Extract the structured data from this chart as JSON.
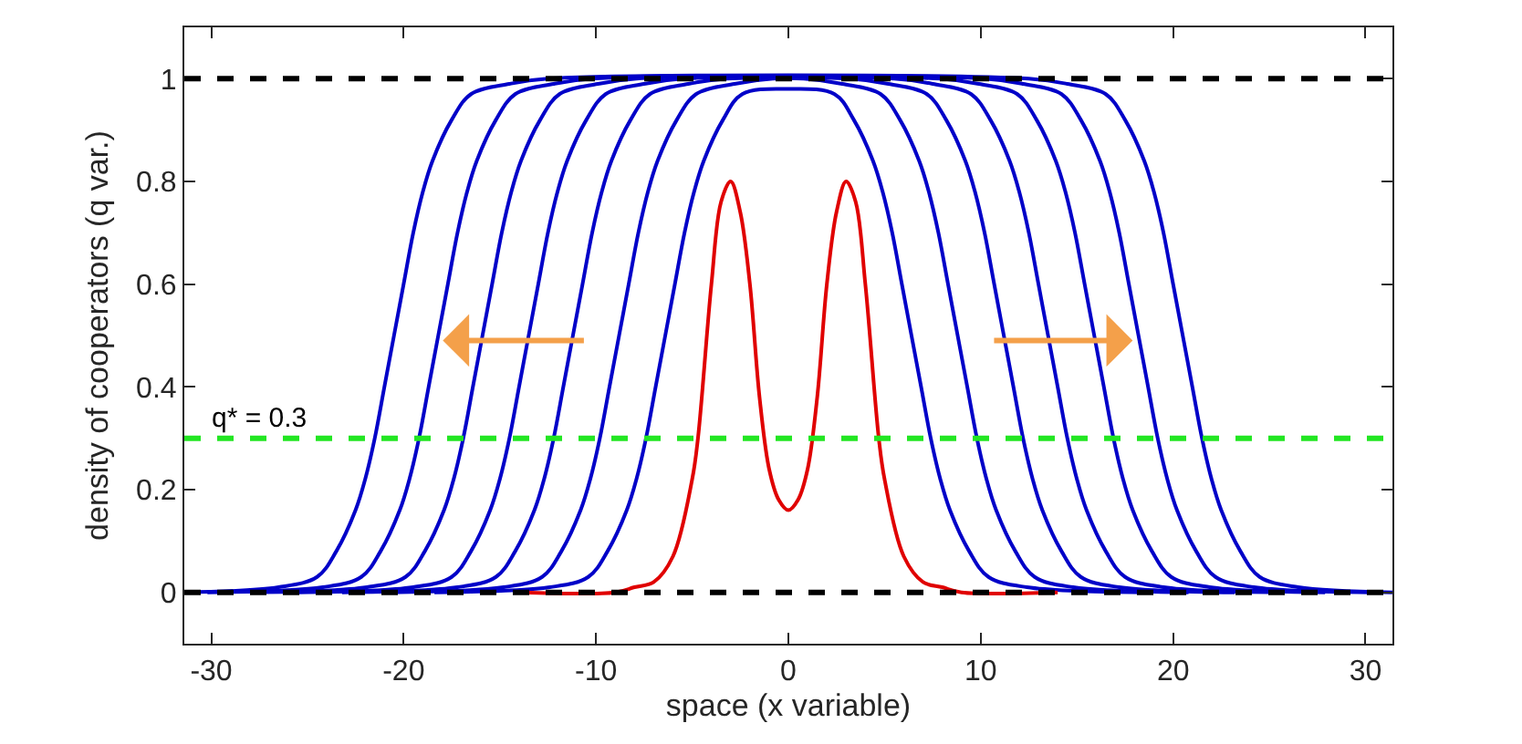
{
  "chart_data": {
    "type": "line",
    "xlabel": "space (x variable)",
    "ylabel": "density of cooperators (q var.)",
    "xlim": [
      -31.4,
      31.4
    ],
    "xticks": [
      -30,
      -20,
      -10,
      0,
      10,
      20,
      30
    ],
    "ylim": [
      -0.1,
      1.1
    ],
    "yticks": [
      0,
      0.2,
      0.4,
      0.6,
      0.8,
      1
    ],
    "grid": false,
    "series": [
      {
        "color": "#0000c8",
        "x": [
          -31.4,
          -26.5,
          -24.5,
          -23.5,
          -22.5,
          -22,
          -21.5,
          -21,
          -20.5,
          -20,
          -19.5,
          -19,
          -18.5,
          -17.5,
          -16.5,
          -14.5,
          -12.5,
          12.5,
          14.5,
          16.5,
          17.5,
          18.5,
          19,
          19.5,
          20,
          20.5,
          21,
          21.5,
          22,
          22.5,
          23.5,
          24.5,
          26.5,
          31.4
        ],
        "values": [
          0,
          0.01,
          0.03,
          0.08,
          0.16,
          0.22,
          0.3,
          0.4,
          0.5,
          0.6,
          0.7,
          0.78,
          0.84,
          0.92,
          0.97,
          0.99,
          1,
          1,
          0.99,
          0.97,
          0.92,
          0.84,
          0.78,
          0.7,
          0.6,
          0.5,
          0.4,
          0.3,
          0.22,
          0.16,
          0.08,
          0.03,
          0.01,
          0
        ]
      },
      {
        "color": "#0000c8",
        "x": [
          -30.2,
          -24.2,
          -22.2,
          -21.2,
          -20.2,
          -19.7,
          -19.2,
          -18.7,
          -18.2,
          -17.7,
          -17.2,
          -16.7,
          -16.2,
          -15.2,
          -14.2,
          -12.2,
          -10.2,
          10.2,
          12.2,
          14.2,
          15.2,
          16.2,
          16.7,
          17.2,
          17.7,
          18.2,
          18.7,
          19.2,
          19.7,
          20.2,
          21.2,
          22.2,
          24.2,
          30.2
        ],
        "values": [
          0,
          0.01,
          0.03,
          0.08,
          0.16,
          0.22,
          0.3,
          0.4,
          0.5,
          0.6,
          0.7,
          0.78,
          0.84,
          0.92,
          0.97,
          0.99,
          1,
          1,
          0.99,
          0.97,
          0.92,
          0.84,
          0.78,
          0.7,
          0.6,
          0.5,
          0.4,
          0.3,
          0.22,
          0.16,
          0.08,
          0.03,
          0.01,
          0
        ]
      },
      {
        "color": "#0000c8",
        "x": [
          -27.9,
          -21.9,
          -19.9,
          -18.9,
          -17.9,
          -17.4,
          -16.9,
          -16.4,
          -15.9,
          -15.4,
          -14.9,
          -14.4,
          -13.9,
          -12.9,
          -11.9,
          -9.9,
          -7.9,
          7.9,
          9.9,
          11.9,
          12.9,
          13.9,
          14.4,
          14.9,
          15.4,
          15.9,
          16.4,
          16.9,
          17.4,
          17.9,
          18.9,
          19.9,
          21.9,
          27.9
        ],
        "values": [
          0,
          0.01,
          0.03,
          0.08,
          0.16,
          0.22,
          0.3,
          0.4,
          0.5,
          0.6,
          0.7,
          0.78,
          0.84,
          0.92,
          0.97,
          0.99,
          1,
          1,
          0.99,
          0.97,
          0.92,
          0.84,
          0.78,
          0.7,
          0.6,
          0.5,
          0.4,
          0.3,
          0.22,
          0.16,
          0.08,
          0.03,
          0.01,
          0
        ]
      },
      {
        "color": "#0000c8",
        "x": [
          -25.5,
          -19.5,
          -17.5,
          -16.5,
          -15.5,
          -15,
          -14.5,
          -14,
          -13.5,
          -13,
          -12.5,
          -12,
          -11.5,
          -10.5,
          -9.5,
          -7.5,
          -5.5,
          5.5,
          7.5,
          9.5,
          10.5,
          11.5,
          12,
          12.5,
          13,
          13.5,
          14,
          14.5,
          15,
          15.5,
          16.5,
          17.5,
          19.5,
          25.5
        ],
        "values": [
          0,
          0.01,
          0.03,
          0.08,
          0.16,
          0.22,
          0.3,
          0.4,
          0.5,
          0.6,
          0.7,
          0.78,
          0.84,
          0.92,
          0.97,
          0.99,
          1,
          1,
          0.99,
          0.97,
          0.92,
          0.84,
          0.78,
          0.7,
          0.6,
          0.5,
          0.4,
          0.3,
          0.22,
          0.16,
          0.08,
          0.03,
          0.01,
          0
        ]
      },
      {
        "color": "#0000c8",
        "x": [
          -23.2,
          -17.2,
          -15.2,
          -14.2,
          -13.2,
          -12.7,
          -12.2,
          -11.7,
          -11.2,
          -10.7,
          -10.2,
          -9.7,
          -9.2,
          -8.2,
          -7.2,
          -5.2,
          -3.2,
          3.2,
          5.2,
          7.2,
          8.2,
          9.2,
          9.7,
          10.2,
          10.7,
          11.2,
          11.7,
          12.2,
          12.7,
          13.2,
          14.2,
          15.2,
          17.2,
          23.2
        ],
        "values": [
          0,
          0.01,
          0.03,
          0.08,
          0.16,
          0.22,
          0.3,
          0.4,
          0.5,
          0.6,
          0.7,
          0.78,
          0.84,
          0.92,
          0.97,
          0.99,
          1,
          1,
          0.99,
          0.97,
          0.92,
          0.84,
          0.78,
          0.7,
          0.6,
          0.5,
          0.4,
          0.3,
          0.22,
          0.16,
          0.08,
          0.03,
          0.01,
          0
        ]
      },
      {
        "color": "#0000c8",
        "x": [
          -20.8,
          -14.8,
          -12.8,
          -11.8,
          -10.8,
          -10.3,
          -9.8,
          -9.3,
          -8.8,
          -8.3,
          -7.8,
          -7.3,
          -6.8,
          -5.8,
          -4.8,
          -2.8,
          -0.8,
          0.8,
          2.8,
          4.8,
          5.8,
          6.8,
          7.3,
          7.8,
          8.3,
          8.8,
          9.3,
          9.8,
          10.3,
          10.8,
          11.8,
          12.8,
          14.8,
          20.8
        ],
        "values": [
          0,
          0.01,
          0.03,
          0.08,
          0.16,
          0.22,
          0.3,
          0.4,
          0.5,
          0.6,
          0.7,
          0.78,
          0.84,
          0.92,
          0.97,
          0.99,
          1,
          1,
          0.99,
          0.97,
          0.92,
          0.84,
          0.78,
          0.7,
          0.6,
          0.5,
          0.4,
          0.3,
          0.22,
          0.16,
          0.08,
          0.03,
          0.01,
          0
        ]
      },
      {
        "color": "#0000c8",
        "x": [
          -18.4,
          -12.4,
          -10.4,
          -9.4,
          -8.4,
          -7.9,
          -7.4,
          -6.9,
          -6.4,
          -5.9,
          -5.4,
          -4.9,
          -4.4,
          -3.4,
          -2.4,
          0,
          2.4,
          3.4,
          4.4,
          4.9,
          5.4,
          5.9,
          6.4,
          6.9,
          7.4,
          7.9,
          8.4,
          9.4,
          10.4,
          12.4,
          18.4
        ],
        "values": [
          0,
          0.01,
          0.03,
          0.08,
          0.16,
          0.22,
          0.3,
          0.4,
          0.5,
          0.6,
          0.7,
          0.78,
          0.84,
          0.92,
          0.97,
          0.98,
          0.97,
          0.92,
          0.84,
          0.78,
          0.7,
          0.6,
          0.5,
          0.4,
          0.3,
          0.22,
          0.16,
          0.08,
          0.03,
          0.01,
          0
        ]
      },
      {
        "color": "#e00000",
        "x": [
          -14,
          -9,
          -8,
          -7,
          -6,
          -5,
          -4.7,
          -4,
          -3.5,
          -3,
          -2.5,
          -2,
          -1.5,
          -1,
          -0.5,
          0,
          0.5,
          1,
          1.5,
          2,
          2.5,
          3,
          3.5,
          4,
          4.7,
          5,
          6,
          7,
          8,
          9,
          14
        ],
        "values": [
          0,
          0,
          0.01,
          0.02,
          0.07,
          0.22,
          0.3,
          0.6,
          0.76,
          0.8,
          0.74,
          0.6,
          0.38,
          0.24,
          0.18,
          0.16,
          0.18,
          0.24,
          0.38,
          0.6,
          0.74,
          0.8,
          0.76,
          0.6,
          0.3,
          0.22,
          0.07,
          0.02,
          0.01,
          0,
          0
        ]
      }
    ],
    "ref_lines": [
      {
        "axis": "y",
        "value": 1,
        "color": "#000000",
        "line_style": "dashed"
      },
      {
        "axis": "y",
        "value": 0,
        "color": "#000000",
        "line_style": "dashed"
      },
      {
        "axis": "y",
        "value": 0.3,
        "label": "q* = 0.3",
        "color": "#22e622",
        "line_style": "dashed"
      }
    ]
  }
}
